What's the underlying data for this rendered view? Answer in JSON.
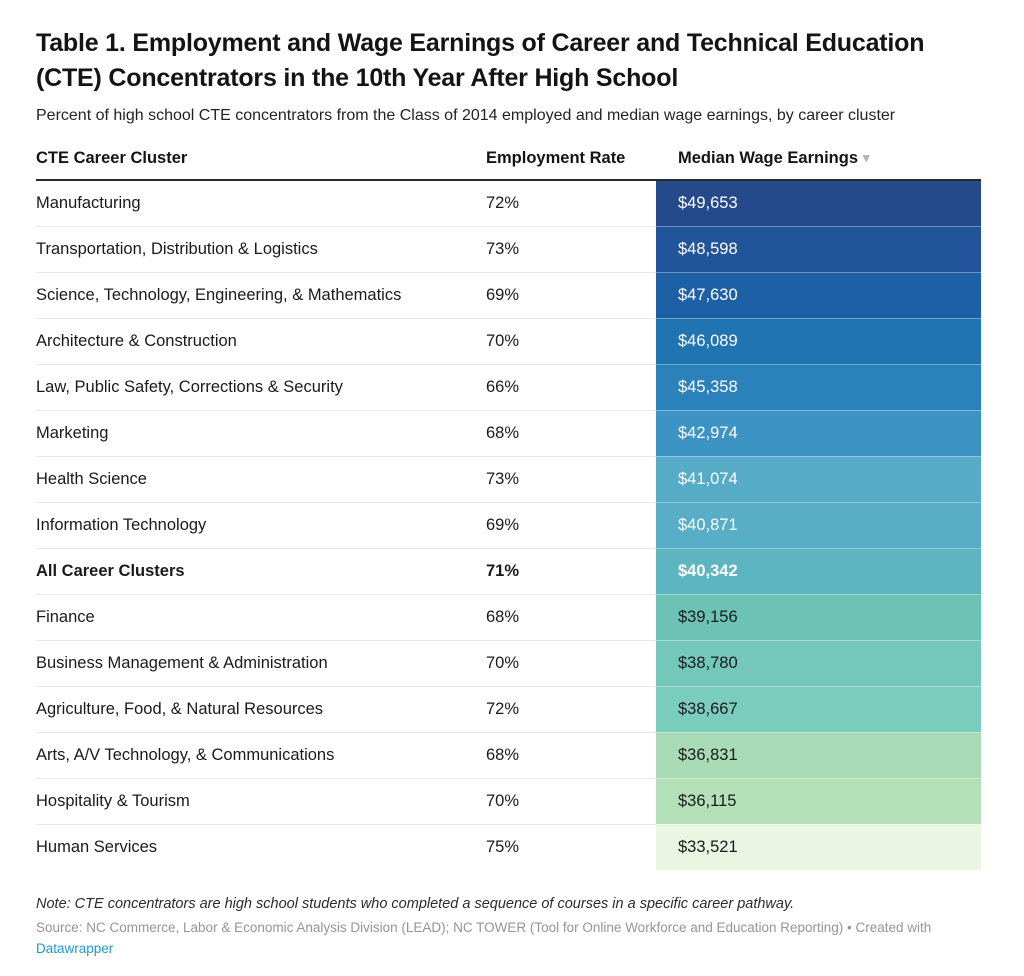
{
  "title": "Table 1. Employment and Wage Earnings of Career and Technical Education (CTE) Concentrators in the 10th Year After High School",
  "subtitle": "Percent of high school CTE concentrators from the Class of 2014 employed and median wage earnings, by career cluster",
  "table": {
    "columns": [
      "CTE Career Cluster",
      "Employment Rate",
      "Median Wage Earnings"
    ],
    "sort_indicator": "▾",
    "rows": [
      {
        "cluster": "Manufacturing",
        "employment": "72%",
        "wage": "$49,653",
        "bg": "#254a8c",
        "text": "#ffffff",
        "bold": false
      },
      {
        "cluster": "Transportation, Distribution & Logistics",
        "employment": "73%",
        "wage": "$48,598",
        "bg": "#21549b",
        "text": "#ffffff",
        "bold": false
      },
      {
        "cluster": "Science, Technology, Engineering, & Mathematics",
        "employment": "69%",
        "wage": "$47,630",
        "bg": "#1d60a6",
        "text": "#ffffff",
        "bold": false
      },
      {
        "cluster": "Architecture & Construction",
        "employment": "70%",
        "wage": "$46,089",
        "bg": "#1f74b1",
        "text": "#ffffff",
        "bold": false
      },
      {
        "cluster": "Law, Public Safety, Corrections & Security",
        "employment": "66%",
        "wage": "$45,358",
        "bg": "#2b82bb",
        "text": "#ffffff",
        "bold": false
      },
      {
        "cluster": "Marketing",
        "employment": "68%",
        "wage": "$42,974",
        "bg": "#3d93c3",
        "text": "#ffffff",
        "bold": false
      },
      {
        "cluster": "Health Science",
        "employment": "73%",
        "wage": "$41,074",
        "bg": "#56acc7",
        "text": "#ffffff",
        "bold": false
      },
      {
        "cluster": "Information Technology",
        "employment": "69%",
        "wage": "$40,871",
        "bg": "#58adc7",
        "text": "#ffffff",
        "bold": false
      },
      {
        "cluster": "All Career Clusters",
        "employment": "71%",
        "wage": "$40,342",
        "bg": "#5cb5c0",
        "text": "#ffffff",
        "bold": true
      },
      {
        "cluster": "Finance",
        "employment": "68%",
        "wage": "$39,156",
        "bg": "#6cc3b5",
        "text": "#1a1a1a",
        "bold": false
      },
      {
        "cluster": "Business Management & Administration",
        "employment": "70%",
        "wage": "$38,780",
        "bg": "#74c8ba",
        "text": "#1a1a1a",
        "bold": false
      },
      {
        "cluster": "Agriculture, Food, & Natural Resources",
        "employment": "72%",
        "wage": "$38,667",
        "bg": "#7accbd",
        "text": "#1a1a1a",
        "bold": false
      },
      {
        "cluster": "Arts, A/V Technology, & Communications",
        "employment": "68%",
        "wage": "$36,831",
        "bg": "#a8dbb5",
        "text": "#1a1a1a",
        "bold": false
      },
      {
        "cluster": "Hospitality & Tourism",
        "employment": "70%",
        "wage": "$36,115",
        "bg": "#b4e0b8",
        "text": "#1a1a1a",
        "bold": false
      },
      {
        "cluster": "Human Services",
        "employment": "75%",
        "wage": "$33,521",
        "bg": "#eaf5e2",
        "text": "#1a1a1a",
        "bold": false
      }
    ]
  },
  "footer": {
    "note": "Note: CTE concentrators are high school students who completed a sequence of courses in a specific career pathway.",
    "source": "Source: NC Commerce, Labor & Economic Analysis Division (LEAD); NC TOWER (Tool for Online Workforce and Education Reporting) • Created with",
    "link": "Datawrapper",
    "link_color": "#1d9bc9"
  },
  "chart_data": {
    "type": "table",
    "title": "Table 1. Employment and Wage Earnings of Career and Technical Education (CTE) Concentrators in the 10th Year After High School",
    "subtitle": "Percent of high school CTE concentrators from the Class of 2014 employed and median wage earnings, by career cluster",
    "columns": [
      "CTE Career Cluster",
      "Employment Rate",
      "Median Wage Earnings"
    ],
    "rows": [
      [
        "Manufacturing",
        "72%",
        49653
      ],
      [
        "Transportation, Distribution & Logistics",
        "73%",
        48598
      ],
      [
        "Science, Technology, Engineering, & Mathematics",
        "69%",
        47630
      ],
      [
        "Architecture & Construction",
        "70%",
        46089
      ],
      [
        "Law, Public Safety, Corrections & Security",
        "66%",
        45358
      ],
      [
        "Marketing",
        "68%",
        42974
      ],
      [
        "Health Science",
        "73%",
        41074
      ],
      [
        "Information Technology",
        "69%",
        40871
      ],
      [
        "All Career Clusters",
        "71%",
        40342
      ],
      [
        "Finance",
        "68%",
        39156
      ],
      [
        "Business Management & Administration",
        "70%",
        38780
      ],
      [
        "Agriculture, Food, & Natural Resources",
        "72%",
        38667
      ],
      [
        "Arts, A/V Technology, & Communications",
        "68%",
        36831
      ],
      [
        "Hospitality & Tourism",
        "70%",
        36115
      ],
      [
        "Human Services",
        "75%",
        33521
      ]
    ],
    "heatmap_column": "Median Wage Earnings",
    "heatmap_scale": "dark blue (high) to pale green (low)",
    "sorted_by": "Median Wage Earnings descending",
    "emphasized_row": "All Career Clusters"
  }
}
